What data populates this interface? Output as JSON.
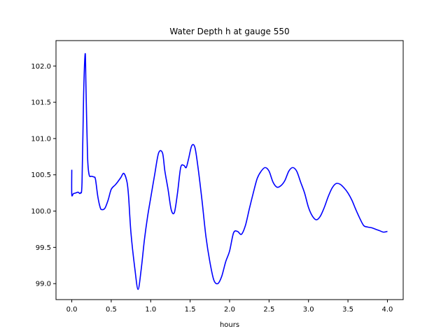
{
  "chart_data": {
    "type": "line",
    "title": "Water Depth h at gauge 550",
    "xlabel": "hours",
    "ylabel": "",
    "xlim": [
      -0.2,
      4.2
    ],
    "ylim": [
      98.78,
      102.35
    ],
    "xticks": [
      0.0,
      0.5,
      1.0,
      1.5,
      2.0,
      2.5,
      3.0,
      3.5,
      4.0
    ],
    "xtick_labels": [
      "0.0",
      "0.5",
      "1.0",
      "1.5",
      "2.0",
      "2.5",
      "3.0",
      "3.5",
      "4.0"
    ],
    "yticks": [
      99.0,
      99.5,
      100.0,
      100.5,
      101.0,
      101.5,
      102.0
    ],
    "ytick_labels": [
      "99.0",
      "99.5",
      "100.0",
      "100.5",
      "101.0",
      "101.5",
      "102.0"
    ],
    "grid": false,
    "series": [
      {
        "color": "#0000ff",
        "x": [
          0.0,
          0.0,
          0.02,
          0.05,
          0.08,
          0.11,
          0.13,
          0.15,
          0.17,
          0.18,
          0.2,
          0.22,
          0.25,
          0.28,
          0.3,
          0.33,
          0.36,
          0.38,
          0.42,
          0.46,
          0.5,
          0.55,
          0.58,
          0.62,
          0.66,
          0.7,
          0.72,
          0.75,
          0.8,
          0.84,
          0.88,
          0.92,
          0.96,
          1.0,
          1.05,
          1.1,
          1.15,
          1.18,
          1.22,
          1.26,
          1.3,
          1.34,
          1.38,
          1.42,
          1.45,
          1.48,
          1.52,
          1.56,
          1.6,
          1.65,
          1.7,
          1.75,
          1.8,
          1.85,
          1.9,
          1.95,
          2.0,
          2.05,
          2.1,
          2.15,
          2.2,
          2.25,
          2.3,
          2.35,
          2.4,
          2.45,
          2.5,
          2.55,
          2.6,
          2.65,
          2.7,
          2.75,
          2.8,
          2.85,
          2.9,
          2.95,
          3.0,
          3.05,
          3.1,
          3.15,
          3.2,
          3.25,
          3.3,
          3.35,
          3.4,
          3.45,
          3.5,
          3.55,
          3.6,
          3.65,
          3.7,
          3.75,
          3.8,
          3.85,
          3.9,
          3.95,
          4.0
        ],
        "y": [
          100.57,
          100.23,
          100.24,
          100.25,
          100.26,
          100.25,
          100.4,
          101.6,
          102.17,
          101.7,
          100.75,
          100.5,
          100.48,
          100.47,
          100.44,
          100.2,
          100.05,
          100.02,
          100.04,
          100.15,
          100.3,
          100.36,
          100.4,
          100.46,
          100.52,
          100.4,
          100.2,
          99.7,
          99.2,
          98.92,
          99.2,
          99.6,
          99.92,
          100.18,
          100.5,
          100.8,
          100.8,
          100.55,
          100.3,
          100.02,
          99.98,
          100.25,
          100.6,
          100.63,
          100.6,
          100.72,
          100.9,
          100.88,
          100.6,
          100.15,
          99.65,
          99.3,
          99.05,
          99.0,
          99.1,
          99.3,
          99.45,
          99.7,
          99.72,
          99.68,
          99.8,
          100.03,
          100.25,
          100.45,
          100.55,
          100.6,
          100.55,
          100.4,
          100.33,
          100.35,
          100.42,
          100.55,
          100.6,
          100.55,
          100.4,
          100.25,
          100.05,
          99.93,
          99.88,
          99.93,
          100.05,
          100.2,
          100.32,
          100.38,
          100.37,
          100.32,
          100.25,
          100.15,
          100.02,
          99.9,
          99.8,
          99.78,
          99.77,
          99.75,
          99.73,
          99.71,
          99.72
        ]
      }
    ]
  }
}
